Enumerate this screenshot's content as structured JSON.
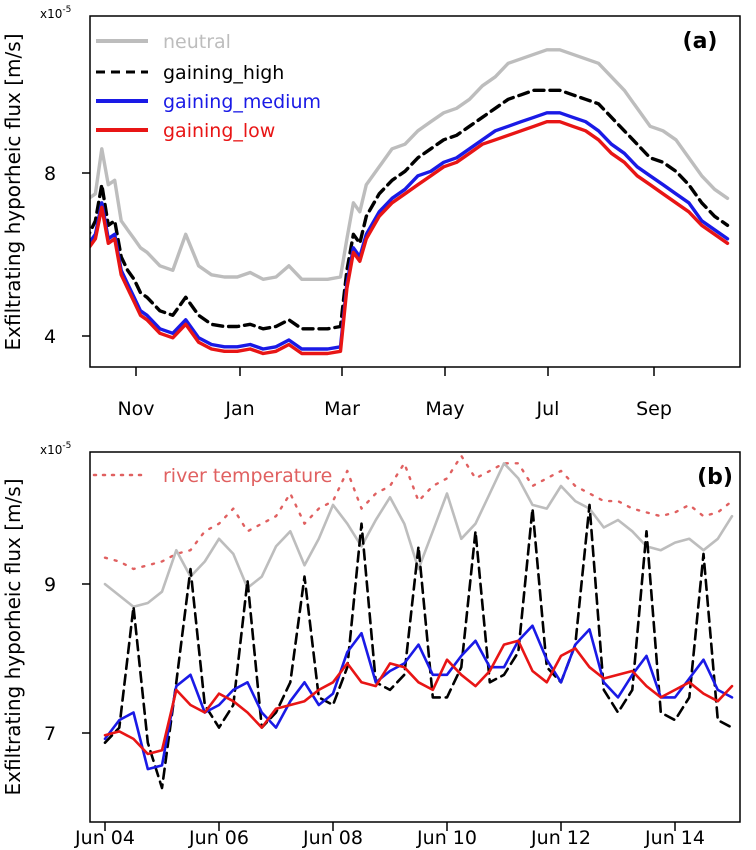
{
  "chart_data": [
    {
      "type": "line",
      "panel_label": "(a)",
      "ylabel": "Exfiltrating hyporheic flux [m/s]",
      "y_multiplier": "x10",
      "y_exponent": "-5",
      "ylim": [
        3.35,
        11.15
      ],
      "yticks": [
        4,
        8
      ],
      "ytick_labels": [
        "4",
        "8"
      ],
      "xlim": [
        0,
        100
      ],
      "xticks": [
        8.3,
        24.8,
        40.5,
        56.6,
        72.7,
        88.6
      ],
      "xtick_labels": [
        "Nov",
        "Jan",
        "Mar",
        "May",
        "Jul",
        "Sep"
      ],
      "legend": {
        "position": "top-left"
      },
      "series": [
        {
          "name": "neutral",
          "color": "#bdbdbd",
          "style": "solid",
          "x": [
            0,
            1,
            2,
            3,
            4,
            5,
            6,
            7,
            8,
            9,
            10,
            12,
            14,
            16,
            18,
            20,
            22,
            24,
            26,
            28,
            30,
            32,
            34,
            36,
            38,
            40,
            41,
            42,
            43,
            44,
            46,
            48,
            50,
            52,
            54,
            56,
            58,
            60,
            62,
            64,
            66,
            68,
            70,
            72,
            74,
            76,
            78,
            80,
            82,
            84,
            86,
            88,
            90,
            92,
            94,
            96,
            98,
            100
          ],
          "values": [
            8.4,
            7.1,
            7.2,
            8.2,
            7.4,
            7.5,
            6.6,
            6.4,
            6.2,
            6.0,
            5.9,
            5.6,
            5.5,
            6.3,
            5.6,
            5.4,
            5.35,
            5.35,
            5.45,
            5.3,
            5.35,
            5.6,
            5.3,
            5.3,
            5.3,
            5.35,
            6.2,
            7.0,
            6.8,
            7.4,
            7.8,
            8.2,
            8.3,
            8.6,
            8.8,
            9.0,
            9.1,
            9.3,
            9.6,
            9.8,
            10.1,
            10.2,
            10.3,
            10.4,
            10.4,
            10.3,
            10.2,
            10.1,
            9.8,
            9.5,
            9.1,
            8.7,
            8.6,
            8.4,
            8.0,
            7.6,
            7.3,
            7.1
          ]
        },
        {
          "name": "gaining_high",
          "color": "#000000",
          "style": "dashed",
          "x": [
            0,
            1,
            2,
            3,
            4,
            5,
            6,
            7,
            8,
            9,
            10,
            12,
            14,
            16,
            18,
            20,
            22,
            24,
            26,
            28,
            30,
            32,
            34,
            36,
            38,
            40,
            41,
            42,
            43,
            44,
            46,
            48,
            50,
            52,
            54,
            56,
            58,
            60,
            62,
            64,
            66,
            68,
            70,
            72,
            74,
            76,
            78,
            80,
            82,
            84,
            86,
            88,
            90,
            92,
            94,
            96,
            98,
            100
          ],
          "values": [
            7.9,
            6.3,
            6.6,
            7.4,
            6.5,
            6.6,
            5.8,
            5.5,
            5.3,
            5.0,
            4.9,
            4.6,
            4.5,
            4.9,
            4.5,
            4.3,
            4.25,
            4.25,
            4.3,
            4.2,
            4.25,
            4.4,
            4.2,
            4.2,
            4.2,
            4.25,
            5.5,
            6.3,
            6.1,
            6.7,
            7.2,
            7.5,
            7.7,
            8.0,
            8.2,
            8.4,
            8.5,
            8.7,
            8.9,
            9.1,
            9.3,
            9.4,
            9.5,
            9.5,
            9.5,
            9.4,
            9.3,
            9.2,
            8.9,
            8.6,
            8.3,
            8.0,
            7.9,
            7.7,
            7.4,
            7.0,
            6.7,
            6.5
          ]
        },
        {
          "name": "gaining_medium",
          "color": "#1a1ae6",
          "style": "solid",
          "x": [
            0,
            1,
            2,
            3,
            4,
            5,
            6,
            7,
            8,
            9,
            10,
            12,
            14,
            16,
            18,
            20,
            22,
            24,
            26,
            28,
            30,
            32,
            34,
            36,
            38,
            40,
            41,
            42,
            43,
            44,
            46,
            48,
            50,
            52,
            54,
            56,
            58,
            60,
            62,
            64,
            66,
            68,
            70,
            72,
            74,
            76,
            78,
            80,
            82,
            84,
            86,
            88,
            90,
            92,
            94,
            96,
            98,
            100
          ],
          "values": [
            7.6,
            6.1,
            6.3,
            7.0,
            6.2,
            6.3,
            5.5,
            5.2,
            4.9,
            4.6,
            4.5,
            4.2,
            4.1,
            4.4,
            4.0,
            3.85,
            3.8,
            3.8,
            3.85,
            3.75,
            3.8,
            3.95,
            3.75,
            3.75,
            3.75,
            3.8,
            5.2,
            6.0,
            5.8,
            6.3,
            6.8,
            7.1,
            7.3,
            7.6,
            7.7,
            7.9,
            8.0,
            8.2,
            8.4,
            8.6,
            8.7,
            8.8,
            8.9,
            9.0,
            9.0,
            8.9,
            8.8,
            8.6,
            8.3,
            8.1,
            7.8,
            7.6,
            7.4,
            7.2,
            7.0,
            6.6,
            6.4,
            6.2
          ]
        },
        {
          "name": "gaining_low",
          "color": "#e81515",
          "style": "solid",
          "x": [
            0,
            1,
            2,
            3,
            4,
            5,
            6,
            7,
            8,
            9,
            10,
            12,
            14,
            16,
            18,
            20,
            22,
            24,
            26,
            28,
            30,
            32,
            34,
            36,
            38,
            40,
            41,
            42,
            43,
            44,
            46,
            48,
            50,
            52,
            54,
            56,
            58,
            60,
            62,
            64,
            66,
            68,
            70,
            72,
            74,
            76,
            78,
            80,
            82,
            84,
            86,
            88,
            90,
            92,
            94,
            96,
            98,
            100
          ],
          "values": [
            7.5,
            6.0,
            6.2,
            6.9,
            6.1,
            6.2,
            5.4,
            5.1,
            4.8,
            4.5,
            4.4,
            4.1,
            4.0,
            4.3,
            3.9,
            3.75,
            3.7,
            3.7,
            3.75,
            3.65,
            3.7,
            3.85,
            3.65,
            3.65,
            3.65,
            3.7,
            5.1,
            5.9,
            5.7,
            6.2,
            6.7,
            7.0,
            7.2,
            7.4,
            7.6,
            7.8,
            7.9,
            8.1,
            8.3,
            8.4,
            8.5,
            8.6,
            8.7,
            8.8,
            8.8,
            8.7,
            8.6,
            8.4,
            8.1,
            7.9,
            7.6,
            7.4,
            7.2,
            7.0,
            6.8,
            6.5,
            6.3,
            6.1
          ]
        }
      ]
    },
    {
      "type": "line",
      "panel_label": "(b)",
      "ylabel": "Exfiltrating hyporheic flux [m/s]",
      "y_multiplier": "x10",
      "y_exponent": "-5",
      "ylim": [
        5.75,
        10.65
      ],
      "yticks": [
        7,
        9
      ],
      "ytick_labels": [
        "7",
        "9"
      ],
      "xlim": [
        3.8,
        15.2
      ],
      "xticks": [
        4,
        6,
        8,
        10,
        12,
        14
      ],
      "xtick_labels": [
        "Jun 04",
        "Jun 06",
        "Jun 08",
        "Jun 10",
        "Jun 12",
        "Jun 14"
      ],
      "legend": {
        "position": "top-left"
      },
      "series": [
        {
          "name": "river temperature",
          "color": "#e06060",
          "style": "dotted",
          "x": [
            4.0,
            4.25,
            4.5,
            4.75,
            5.0,
            5.25,
            5.5,
            5.75,
            6.0,
            6.25,
            6.5,
            6.75,
            7.0,
            7.25,
            7.5,
            7.75,
            8.0,
            8.25,
            8.5,
            8.75,
            9.0,
            9.25,
            9.5,
            9.75,
            10.0,
            10.25,
            10.5,
            10.75,
            11.0,
            11.25,
            11.5,
            11.75,
            12.0,
            12.25,
            12.5,
            12.75,
            13.0,
            13.25,
            13.5,
            13.75,
            14.0,
            14.25,
            14.5,
            14.75,
            15.0
          ],
          "values": [
            9.25,
            9.2,
            9.1,
            9.15,
            9.2,
            9.3,
            9.35,
            9.6,
            9.7,
            9.9,
            9.6,
            9.7,
            9.8,
            10.1,
            9.7,
            9.9,
            10.0,
            10.4,
            9.9,
            10.1,
            10.2,
            10.5,
            10.0,
            10.2,
            10.3,
            10.6,
            10.3,
            10.4,
            10.5,
            10.5,
            10.2,
            10.3,
            10.4,
            10.2,
            10.1,
            10.0,
            10.0,
            9.9,
            9.85,
            9.8,
            9.85,
            9.95,
            9.8,
            9.85,
            10.0
          ]
        },
        {
          "name": "",
          "color": "#bdbdbd",
          "style": "solid",
          "x": [
            4.0,
            4.25,
            4.5,
            4.75,
            5.0,
            5.25,
            5.5,
            5.75,
            6.0,
            6.25,
            6.5,
            6.75,
            7.0,
            7.25,
            7.5,
            7.75,
            8.0,
            8.25,
            8.5,
            8.75,
            9.0,
            9.25,
            9.5,
            9.75,
            10.0,
            10.25,
            10.5,
            10.75,
            11.0,
            11.25,
            11.5,
            11.75,
            12.0,
            12.25,
            12.5,
            12.75,
            13.0,
            13.25,
            13.5,
            13.75,
            14.0,
            14.25,
            14.5,
            14.75,
            15.0
          ],
          "values": [
            8.9,
            8.75,
            8.6,
            8.65,
            8.8,
            9.35,
            9.0,
            9.2,
            9.5,
            9.3,
            8.85,
            9.0,
            9.4,
            9.6,
            9.15,
            9.5,
            9.95,
            9.7,
            9.4,
            9.75,
            10.05,
            9.7,
            9.1,
            9.6,
            10.1,
            9.5,
            9.7,
            10.1,
            10.5,
            10.3,
            9.95,
            9.9,
            10.2,
            10.0,
            9.9,
            9.65,
            9.75,
            9.6,
            9.4,
            9.35,
            9.45,
            9.5,
            9.35,
            9.5,
            9.8
          ]
        },
        {
          "name": "",
          "color": "#000000",
          "style": "dashed",
          "x": [
            4.0,
            4.25,
            4.5,
            4.75,
            5.0,
            5.25,
            5.5,
            5.75,
            6.0,
            6.25,
            6.5,
            6.75,
            7.0,
            7.25,
            7.5,
            7.75,
            8.0,
            8.25,
            8.5,
            8.75,
            9.0,
            9.25,
            9.5,
            9.75,
            10.0,
            10.25,
            10.5,
            10.75,
            11.0,
            11.25,
            11.5,
            11.75,
            12.0,
            12.25,
            12.5,
            12.75,
            13.0,
            13.25,
            13.5,
            13.75,
            14.0,
            14.25,
            14.5,
            14.75,
            15.0
          ],
          "values": [
            6.8,
            7.0,
            8.6,
            6.8,
            6.2,
            7.6,
            9.1,
            7.3,
            7.0,
            7.3,
            8.95,
            7.0,
            7.2,
            7.6,
            9.0,
            7.4,
            7.3,
            7.8,
            9.7,
            7.6,
            7.5,
            7.7,
            9.4,
            7.4,
            7.4,
            7.8,
            9.6,
            7.6,
            7.7,
            8.0,
            9.9,
            7.8,
            7.6,
            8.1,
            9.95,
            7.5,
            7.2,
            7.5,
            9.6,
            7.2,
            7.1,
            7.4,
            9.3,
            7.1,
            7.0
          ]
        },
        {
          "name": "",
          "color": "#1a1ae6",
          "style": "solid",
          "x": [
            4.0,
            4.25,
            4.5,
            4.75,
            5.0,
            5.25,
            5.5,
            5.75,
            6.0,
            6.25,
            6.5,
            6.75,
            7.0,
            7.25,
            7.5,
            7.75,
            8.0,
            8.25,
            8.5,
            8.75,
            9.0,
            9.25,
            9.5,
            9.75,
            10.0,
            10.25,
            10.5,
            10.75,
            11.0,
            11.25,
            11.5,
            11.75,
            12.0,
            12.25,
            12.5,
            12.75,
            13.0,
            13.25,
            13.5,
            13.75,
            14.0,
            14.25,
            14.5,
            14.75,
            15.0
          ],
          "values": [
            6.85,
            7.1,
            7.2,
            6.45,
            6.5,
            7.55,
            7.7,
            7.2,
            7.3,
            7.5,
            7.6,
            7.2,
            7.0,
            7.35,
            7.6,
            7.3,
            7.45,
            8.0,
            8.25,
            7.6,
            7.75,
            7.85,
            8.1,
            7.7,
            7.7,
            7.95,
            8.15,
            7.8,
            7.8,
            8.15,
            8.35,
            7.9,
            7.6,
            8.1,
            8.3,
            7.6,
            7.4,
            7.7,
            7.95,
            7.4,
            7.4,
            7.65,
            7.9,
            7.5,
            7.4
          ]
        },
        {
          "name": "",
          "color": "#e81515",
          "style": "solid",
          "x": [
            4.0,
            4.25,
            4.5,
            4.75,
            5.0,
            5.25,
            5.5,
            5.75,
            6.0,
            6.25,
            6.5,
            6.75,
            7.0,
            7.25,
            7.5,
            7.75,
            8.0,
            8.25,
            8.5,
            8.75,
            9.0,
            9.25,
            9.5,
            9.75,
            10.0,
            10.25,
            10.5,
            10.75,
            11.0,
            11.25,
            11.5,
            11.75,
            12.0,
            12.25,
            12.5,
            12.75,
            13.0,
            13.25,
            13.5,
            13.75,
            14.0,
            14.25,
            14.5,
            14.75,
            15.0
          ],
          "values": [
            6.9,
            6.95,
            6.85,
            6.65,
            6.7,
            7.5,
            7.3,
            7.2,
            7.45,
            7.35,
            7.2,
            7.0,
            7.25,
            7.3,
            7.35,
            7.5,
            7.6,
            7.85,
            7.6,
            7.55,
            7.85,
            7.8,
            7.6,
            7.5,
            7.9,
            7.7,
            7.55,
            7.75,
            8.1,
            8.15,
            7.75,
            7.6,
            7.95,
            8.05,
            7.8,
            7.65,
            7.7,
            7.75,
            7.55,
            7.4,
            7.5,
            7.6,
            7.45,
            7.35,
            7.55
          ]
        }
      ]
    }
  ]
}
